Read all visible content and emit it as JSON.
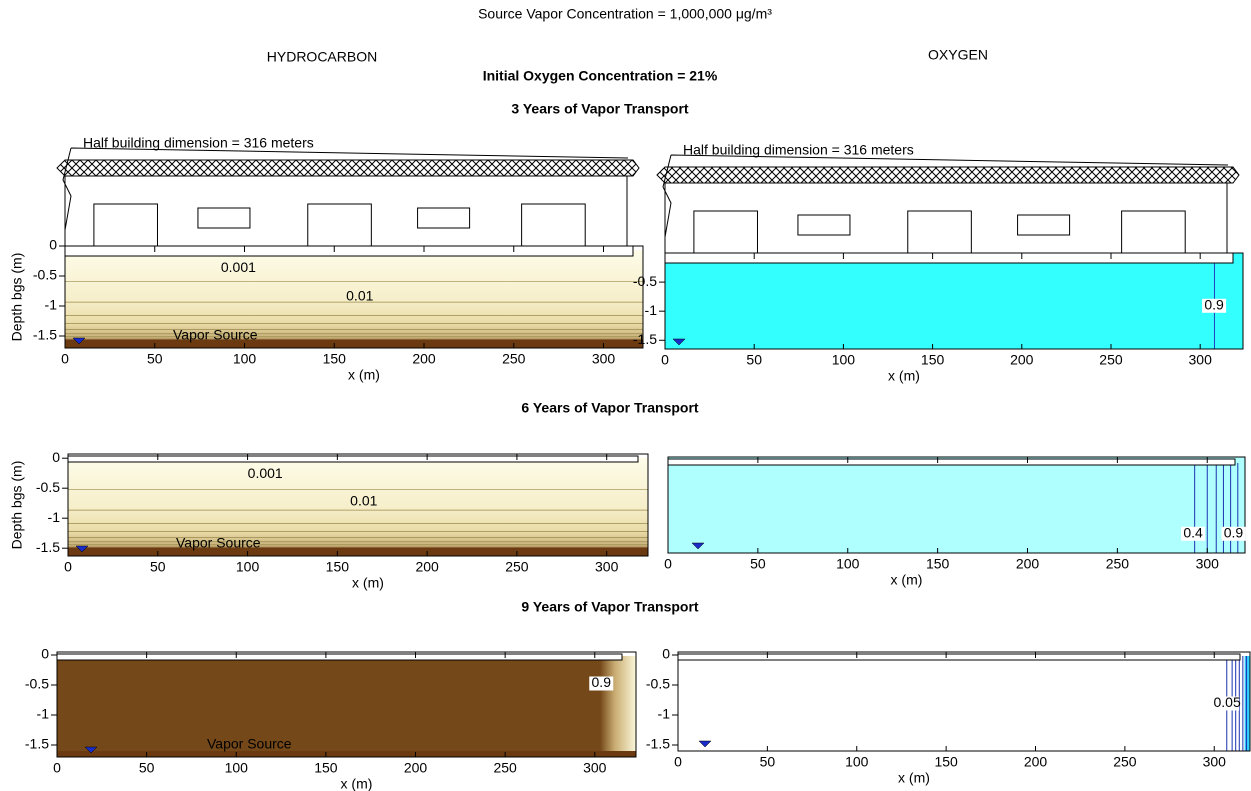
{
  "header": {
    "title": "Source Vapor Concentration = 1,000,000 μg/m³",
    "left_heading": "HYDROCARBON",
    "right_heading": "OXYGEN",
    "subtitle": "Initial Oxygen Concentration = 21%"
  },
  "sections": [
    "3 Years of Vapor Transport",
    "6 Years of Vapor Transport",
    "9 Years of Vapor Transport"
  ],
  "chart_data": [
    {
      "type": "contour",
      "fill": "hydrocarbon",
      "xlim": [
        0,
        322
      ],
      "ylim": [
        -1.7,
        0
      ],
      "xticks": [
        0,
        50,
        100,
        150,
        200,
        250,
        300
      ],
      "yticks": [
        0,
        -0.5,
        -1,
        -1.5
      ],
      "xlabel": "x (m)",
      "ylabel": "Depth bgs (m)",
      "building": "Half building dimension = 316 meters",
      "source_label": "Vapor Source",
      "contour_labels": [
        0.001,
        0.01
      ]
    },
    {
      "type": "contour",
      "fill": "#33ffff",
      "xlim": [
        0,
        324
      ],
      "ylim": [
        -1.65,
        0
      ],
      "xticks": [
        0,
        50,
        100,
        150,
        200,
        250,
        300
      ],
      "yticks": [
        -0.5,
        -1,
        -1.5
      ],
      "xlabel": "x (m)",
      "building": "Half building dimension = 316 meters",
      "contour_labels": [
        0.9
      ]
    },
    {
      "type": "contour",
      "fill": "hydrocarbon",
      "xlim": [
        0,
        323
      ],
      "ylim": [
        -1.63,
        0.07
      ],
      "xticks": [
        0,
        50,
        100,
        150,
        200,
        250,
        300
      ],
      "yticks": [
        0,
        -0.5,
        -1,
        -1.5
      ],
      "xlabel": "x (m)",
      "ylabel": "Depth bgs (m)",
      "source_label": "Vapor Source",
      "contour_labels": [
        0.001,
        0.01
      ]
    },
    {
      "type": "contour",
      "fill": "#b0ffff",
      "xlim": [
        0,
        321
      ],
      "ylim": [
        -1.6,
        0.05
      ],
      "xticks": [
        0,
        50,
        100,
        150,
        200,
        250,
        300
      ],
      "xlabel": "x (m)",
      "contour_labels": [
        0.4,
        0.9
      ]
    },
    {
      "type": "contour",
      "fill": "#744819",
      "xlim": [
        0,
        323
      ],
      "ylim": [
        -1.7,
        0.05
      ],
      "xticks": [
        0,
        50,
        100,
        150,
        200,
        250,
        300
      ],
      "yticks": [
        0,
        -0.5,
        -1,
        -1.5
      ],
      "xlabel": "x (m)",
      "source_label": "Vapor Source",
      "contour_labels": [
        0.9
      ]
    },
    {
      "type": "contour",
      "fill": "#ffffff",
      "xlim": [
        0,
        320
      ],
      "ylim": [
        -1.6,
        0.05
      ],
      "xticks": [
        0,
        50,
        100,
        150,
        200,
        250,
        300
      ],
      "yticks": [
        0,
        -0.5,
        -1,
        -1.5
      ],
      "xlabel": "x (m)",
      "contour_labels": [
        0.05
      ]
    }
  ]
}
